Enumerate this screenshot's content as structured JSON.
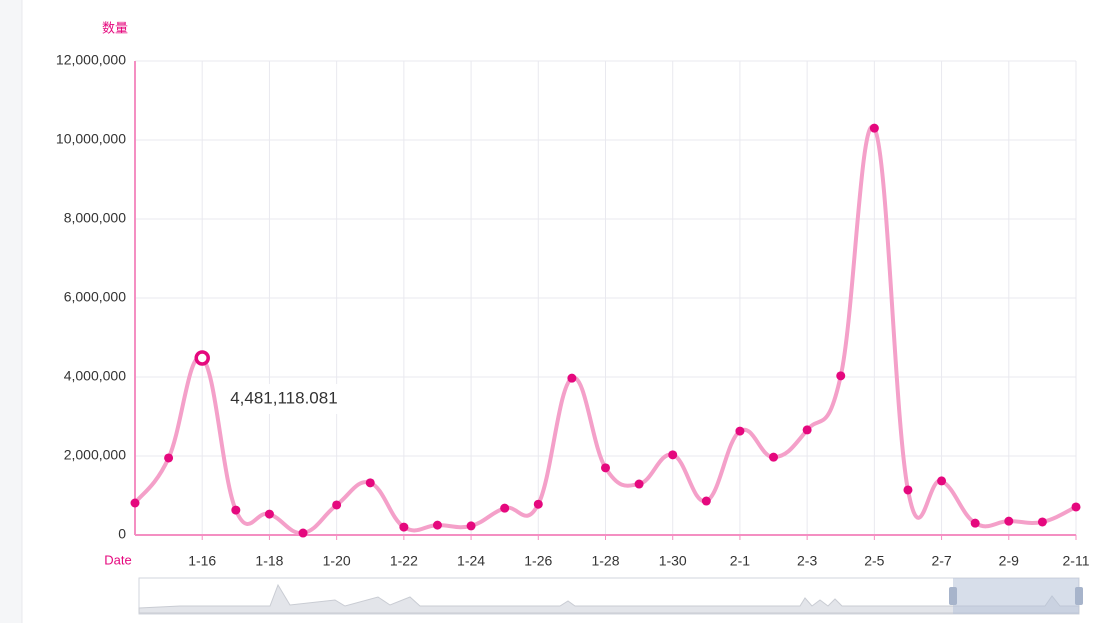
{
  "chart_data": {
    "type": "line",
    "y_axis_name": "数量",
    "x_axis_name": "Date",
    "categories": [
      null,
      null,
      "1-16",
      null,
      "1-18",
      null,
      "1-20",
      null,
      "1-22",
      null,
      "1-24",
      null,
      "1-26",
      null,
      "1-28",
      null,
      "1-30",
      null,
      "2-1",
      null,
      "2-3",
      null,
      "2-5",
      null,
      "2-7",
      null,
      "2-9",
      null,
      "2-11"
    ],
    "series": [
      {
        "line_color": "#f4a0c9",
        "color": "#e5087e",
        "values": [
          810000,
          1950000,
          4481118.081,
          630000,
          530000,
          50000,
          760000,
          1320000,
          200000,
          250000,
          230000,
          680000,
          780000,
          3970000,
          1700000,
          1290000,
          2030000,
          860000,
          2630000,
          1970000,
          2660000,
          4030000,
          10300000,
          1140000,
          1370000,
          300000,
          350000,
          330000,
          710000
        ],
        "value_labels": [
          null,
          null,
          "4,481,118.081",
          null,
          null,
          null,
          null,
          null,
          null,
          null,
          null,
          null,
          null,
          null,
          null,
          null,
          null,
          null,
          null,
          null,
          null,
          null,
          null,
          null,
          null,
          null,
          null,
          null,
          null
        ]
      }
    ],
    "ylim": [
      0,
      12000000
    ],
    "yticks": [
      0,
      {
        "value": 2000000,
        "label": "2,000,000"
      },
      {
        "value": 4000000,
        "label": "4,000,000"
      },
      {
        "value": 6000000,
        "label": "6,000,000"
      },
      {
        "value": 8000000,
        "label": "8,000,000"
      },
      {
        "value": 10000000,
        "label": "10,000,000"
      },
      {
        "value": 12000000,
        "label": "12,000,000"
      }
    ],
    "grid": true
  }
}
